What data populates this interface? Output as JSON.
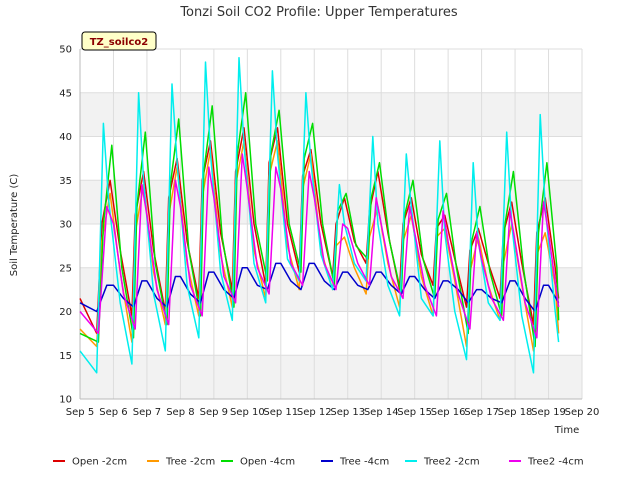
{
  "chart_data": {
    "type": "line",
    "title": "Tonzi Soil CO2 Profile: Upper Temperatures",
    "xlabel": "Time",
    "ylabel": "Soil Temperature (C)",
    "badge": "TZ_soilco2",
    "xlim": [
      5,
      20
    ],
    "ylim": [
      10,
      50
    ],
    "x_ticks": [
      5,
      6,
      7,
      8,
      9,
      10,
      11,
      12,
      13,
      14,
      15,
      16,
      17,
      18,
      19,
      20
    ],
    "x_tick_labels": [
      "Sep 5",
      "Sep 6",
      "Sep 7",
      "Sep 8",
      "Sep 9",
      "Sep 10",
      "Sep 11",
      "Sep 12",
      "Sep 13",
      "Sep 14",
      "Sep 15",
      "Sep 16",
      "Sep 17",
      "Sep 18",
      "Sep 19",
      "Sep 20"
    ],
    "y_ticks": [
      10,
      15,
      20,
      25,
      30,
      35,
      40,
      45,
      50
    ],
    "y_tick_labels": [
      "10",
      "15",
      "20",
      "25",
      "30",
      "35",
      "40",
      "45",
      "50"
    ],
    "grid": true,
    "legend_position": "bottom",
    "series": [
      {
        "name": "Open -2cm",
        "color": "#dd0000",
        "x": [
          5.0,
          5.5,
          5.65,
          5.9,
          6.2,
          6.55,
          6.65,
          6.9,
          7.2,
          7.55,
          7.65,
          7.9,
          8.2,
          8.55,
          8.65,
          8.9,
          9.2,
          9.55,
          9.65,
          9.9,
          10.2,
          10.55,
          10.65,
          10.9,
          11.2,
          11.55,
          11.65,
          11.9,
          12.2,
          12.55,
          12.65,
          12.9,
          13.2,
          13.55,
          13.65,
          13.9,
          14.2,
          14.55,
          14.65,
          14.9,
          15.2,
          15.55,
          15.65,
          15.9,
          16.2,
          16.55,
          16.65,
          16.9,
          17.2,
          17.55,
          17.65,
          17.9,
          18.2,
          18.55,
          18.65,
          18.9,
          19.2,
          19.3
        ],
        "y": [
          21.5,
          17.5,
          30.0,
          35.0,
          27.0,
          19.5,
          31.0,
          36.0,
          27.0,
          20.0,
          33.0,
          37.5,
          28.0,
          21.5,
          35.0,
          39.5,
          29.0,
          22.5,
          36.0,
          41.0,
          30.0,
          23.0,
          37.0,
          41.0,
          30.0,
          24.5,
          35.5,
          38.5,
          30.0,
          24.0,
          30.0,
          33.0,
          28.0,
          25.5,
          31.5,
          36.0,
          29.0,
          22.5,
          30.0,
          33.0,
          26.5,
          23.0,
          29.5,
          31.0,
          26.0,
          20.5,
          27.0,
          29.5,
          25.5,
          21.5,
          29.0,
          32.5,
          25.5,
          18.5,
          29.0,
          33.0,
          25.0,
          21.5
        ]
      },
      {
        "name": "Tree -2cm",
        "color": "#ff9900",
        "x": [
          5.0,
          5.5,
          5.65,
          5.9,
          6.2,
          6.55,
          6.65,
          6.9,
          7.2,
          7.55,
          7.65,
          7.9,
          8.2,
          8.55,
          8.65,
          8.9,
          9.2,
          9.55,
          9.65,
          9.9,
          10.2,
          10.55,
          10.65,
          10.9,
          11.2,
          11.55,
          11.65,
          11.9,
          12.2,
          12.55,
          12.65,
          12.9,
          13.2,
          13.55,
          13.65,
          13.9,
          14.2,
          14.55,
          14.65,
          14.9,
          15.2,
          15.55,
          15.65,
          15.9,
          16.2,
          16.55,
          16.65,
          16.9,
          17.2,
          17.55,
          17.65,
          17.9,
          18.2,
          18.55,
          18.65,
          18.9,
          19.2,
          19.3
        ],
        "y": [
          18.0,
          16.0,
          28.0,
          33.5,
          24.5,
          16.5,
          29.0,
          34.5,
          24.5,
          18.5,
          31.0,
          36.5,
          25.5,
          19.5,
          33.0,
          38.5,
          26.5,
          20.5,
          34.5,
          39.5,
          27.0,
          21.5,
          35.5,
          39.5,
          27.5,
          22.5,
          34.0,
          38.0,
          27.0,
          22.5,
          27.5,
          28.5,
          25.0,
          22.0,
          28.5,
          32.0,
          25.5,
          20.5,
          28.0,
          31.0,
          24.0,
          19.5,
          28.5,
          29.5,
          23.5,
          16.0,
          24.5,
          28.5,
          23.0,
          19.0,
          25.5,
          30.0,
          23.0,
          15.5,
          26.5,
          29.0,
          23.0,
          17.5
        ]
      },
      {
        "name": "Open -4cm",
        "color": "#00dd00",
        "x": [
          5.0,
          5.55,
          5.7,
          5.95,
          6.25,
          6.6,
          6.7,
          6.95,
          7.25,
          7.6,
          7.7,
          7.95,
          8.25,
          8.6,
          8.7,
          8.95,
          9.25,
          9.6,
          9.7,
          9.95,
          10.25,
          10.6,
          10.7,
          10.95,
          11.25,
          11.6,
          11.7,
          11.95,
          12.25,
          12.6,
          12.7,
          12.95,
          13.25,
          13.6,
          13.7,
          13.95,
          14.25,
          14.6,
          14.7,
          14.95,
          15.25,
          15.6,
          15.7,
          15.95,
          16.25,
          16.6,
          16.7,
          16.95,
          17.25,
          17.6,
          17.7,
          17.95,
          18.25,
          18.6,
          18.7,
          18.95,
          19.25,
          19.3
        ],
        "y": [
          17.5,
          16.5,
          30.0,
          39.0,
          25.0,
          17.0,
          32.0,
          40.5,
          25.5,
          18.5,
          34.5,
          42.0,
          27.0,
          19.5,
          36.0,
          43.5,
          28.5,
          20.5,
          38.0,
          45.0,
          30.0,
          23.5,
          38.0,
          43.0,
          30.0,
          24.5,
          37.5,
          41.5,
          30.0,
          23.0,
          31.5,
          33.5,
          27.5,
          26.0,
          33.0,
          37.0,
          28.0,
          22.0,
          31.0,
          35.0,
          26.0,
          21.5,
          30.5,
          33.5,
          25.0,
          17.5,
          28.0,
          32.0,
          24.5,
          19.5,
          30.0,
          36.0,
          25.0,
          16.0,
          29.0,
          37.0,
          25.0,
          19.0
        ]
      },
      {
        "name": "Tree -4cm",
        "color": "#0000cc",
        "x": [
          5.0,
          5.5,
          5.8,
          6.0,
          6.3,
          6.6,
          6.85,
          7.0,
          7.3,
          7.6,
          7.85,
          8.0,
          8.3,
          8.6,
          8.85,
          9.0,
          9.3,
          9.6,
          9.85,
          10.0,
          10.3,
          10.6,
          10.85,
          11.0,
          11.3,
          11.6,
          11.85,
          12.0,
          12.3,
          12.6,
          12.85,
          13.0,
          13.3,
          13.6,
          13.85,
          14.0,
          14.3,
          14.6,
          14.85,
          15.0,
          15.3,
          15.6,
          15.85,
          16.0,
          16.3,
          16.6,
          16.85,
          17.0,
          17.3,
          17.6,
          17.85,
          18.0,
          18.3,
          18.6,
          18.85,
          19.0,
          19.3
        ],
        "y": [
          21.0,
          20.0,
          23.0,
          23.0,
          21.5,
          20.5,
          23.5,
          23.5,
          21.5,
          20.5,
          24.0,
          24.0,
          22.0,
          21.0,
          24.5,
          24.5,
          22.5,
          21.5,
          25.0,
          25.0,
          23.0,
          22.5,
          25.5,
          25.5,
          23.5,
          22.5,
          25.5,
          25.5,
          23.5,
          22.5,
          24.5,
          24.5,
          23.0,
          22.5,
          24.5,
          24.5,
          23.0,
          22.0,
          24.0,
          24.0,
          22.5,
          21.5,
          23.5,
          23.5,
          22.5,
          21.0,
          22.5,
          22.5,
          21.5,
          21.0,
          23.5,
          23.5,
          21.5,
          20.0,
          23.0,
          23.0,
          21.0
        ]
      },
      {
        "name": "Tree2 -2cm",
        "color": "#00eeee",
        "x": [
          5.0,
          5.5,
          5.7,
          5.85,
          6.2,
          6.55,
          6.75,
          6.9,
          7.2,
          7.55,
          7.75,
          7.9,
          8.2,
          8.55,
          8.75,
          8.9,
          9.2,
          9.55,
          9.75,
          9.9,
          10.2,
          10.55,
          10.75,
          10.9,
          11.2,
          11.55,
          11.75,
          11.9,
          12.2,
          12.55,
          12.75,
          12.9,
          13.2,
          13.55,
          13.75,
          13.9,
          14.2,
          14.55,
          14.75,
          14.9,
          15.2,
          15.55,
          15.75,
          15.9,
          16.2,
          16.55,
          16.75,
          16.9,
          17.2,
          17.55,
          17.75,
          17.9,
          18.2,
          18.55,
          18.75,
          18.9,
          19.2,
          19.3
        ],
        "y": [
          15.5,
          13.0,
          41.5,
          33.0,
          21.0,
          14.0,
          45.0,
          35.0,
          22.0,
          15.5,
          46.0,
          37.0,
          23.0,
          17.0,
          48.5,
          38.0,
          24.5,
          19.0,
          49.0,
          39.0,
          25.5,
          21.0,
          47.5,
          38.0,
          26.0,
          23.5,
          45.0,
          37.0,
          26.5,
          22.5,
          34.5,
          30.0,
          25.5,
          23.5,
          40.0,
          30.0,
          23.0,
          19.5,
          38.0,
          32.0,
          21.5,
          19.5,
          39.5,
          29.0,
          20.0,
          14.5,
          37.0,
          28.0,
          21.0,
          19.0,
          40.5,
          30.0,
          19.5,
          13.0,
          42.5,
          32.0,
          20.0,
          16.5
        ]
      },
      {
        "name": "Tree2 -4cm",
        "color": "#ee00ee",
        "x": [
          5.0,
          5.55,
          5.8,
          6.0,
          6.3,
          6.65,
          6.85,
          7.0,
          7.3,
          7.65,
          7.85,
          8.0,
          8.3,
          8.65,
          8.85,
          9.0,
          9.3,
          9.65,
          9.85,
          10.0,
          10.3,
          10.65,
          10.85,
          11.0,
          11.3,
          11.65,
          11.85,
          12.0,
          12.3,
          12.65,
          12.85,
          13.0,
          13.3,
          13.65,
          13.85,
          14.0,
          14.3,
          14.65,
          14.85,
          15.0,
          15.3,
          15.65,
          15.85,
          16.0,
          16.3,
          16.65,
          16.85,
          17.0,
          17.3,
          17.65,
          17.85,
          18.0,
          18.3,
          18.65,
          18.85,
          19.0,
          19.3
        ],
        "y": [
          20.0,
          17.5,
          32.0,
          30.0,
          22.0,
          18.0,
          34.5,
          31.0,
          22.5,
          18.5,
          35.0,
          32.0,
          23.0,
          19.5,
          36.5,
          33.0,
          24.0,
          21.0,
          38.0,
          34.0,
          25.0,
          22.0,
          36.5,
          34.0,
          25.5,
          23.0,
          36.0,
          33.0,
          25.5,
          22.5,
          30.0,
          29.5,
          25.5,
          23.0,
          33.0,
          30.0,
          24.0,
          21.5,
          32.0,
          29.0,
          23.0,
          19.5,
          31.5,
          28.0,
          22.0,
          18.0,
          29.0,
          26.0,
          21.5,
          19.0,
          31.5,
          28.0,
          21.0,
          17.0,
          32.5,
          29.0,
          20.5
        ]
      }
    ]
  }
}
